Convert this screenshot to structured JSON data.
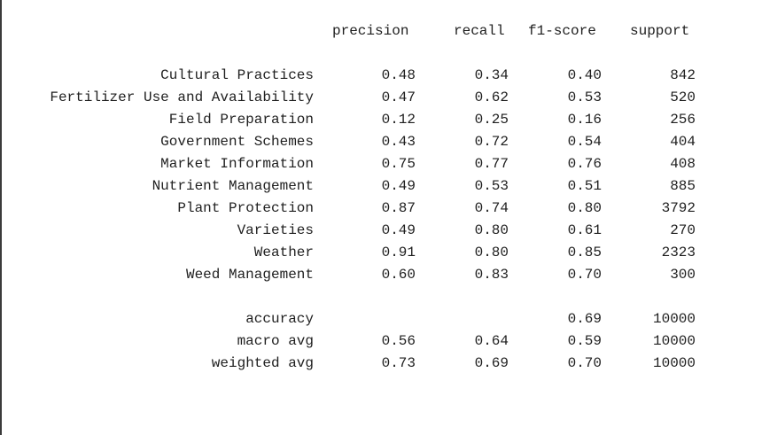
{
  "report": {
    "headers": [
      "precision",
      "recall",
      "f1-score",
      "support"
    ],
    "rows": [
      {
        "label": "Cultural Practices",
        "precision": "0.48",
        "recall": "0.34",
        "f1": "0.40",
        "support": "842"
      },
      {
        "label": "Fertilizer Use and Availability",
        "precision": "0.47",
        "recall": "0.62",
        "f1": "0.53",
        "support": "520"
      },
      {
        "label": "Field Preparation",
        "precision": "0.12",
        "recall": "0.25",
        "f1": "0.16",
        "support": "256"
      },
      {
        "label": "Government Schemes",
        "precision": "0.43",
        "recall": "0.72",
        "f1": "0.54",
        "support": "404"
      },
      {
        "label": "Market Information",
        "precision": "0.75",
        "recall": "0.77",
        "f1": "0.76",
        "support": "408"
      },
      {
        "label": "Nutrient Management",
        "precision": "0.49",
        "recall": "0.53",
        "f1": "0.51",
        "support": "885"
      },
      {
        "label": "Plant Protection",
        "precision": "0.87",
        "recall": "0.74",
        "f1": "0.80",
        "support": "3792"
      },
      {
        "label": "Varieties",
        "precision": "0.49",
        "recall": "0.80",
        "f1": "0.61",
        "support": "270"
      },
      {
        "label": "Weather",
        "precision": "0.91",
        "recall": "0.80",
        "f1": "0.85",
        "support": "2323"
      },
      {
        "label": "Weed Management",
        "precision": "0.60",
        "recall": "0.83",
        "f1": "0.70",
        "support": "300"
      }
    ],
    "summary": [
      {
        "label": "accuracy",
        "precision": "",
        "recall": "",
        "f1": "0.69",
        "support": "10000"
      },
      {
        "label": "macro avg",
        "precision": "0.56",
        "recall": "0.64",
        "f1": "0.59",
        "support": "10000"
      },
      {
        "label": "weighted avg",
        "precision": "0.73",
        "recall": "0.69",
        "f1": "0.70",
        "support": "10000"
      }
    ]
  }
}
